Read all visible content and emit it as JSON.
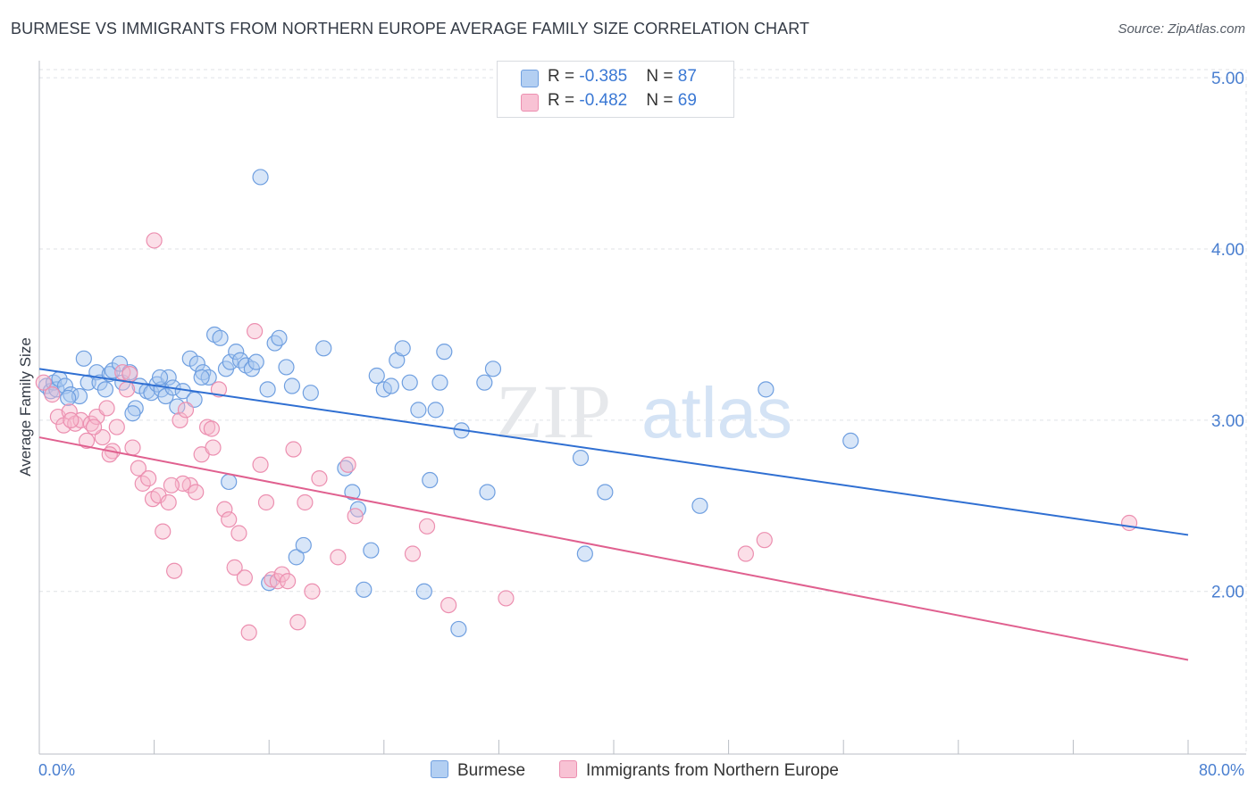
{
  "title": "BURMESE VS IMMIGRANTS FROM NORTHERN EUROPE AVERAGE FAMILY SIZE CORRELATION CHART",
  "source": "Source: ZipAtlas.com",
  "watermark": {
    "zip": "ZIP",
    "atlas": "atlas"
  },
  "legend": {
    "rows": [
      {
        "r_label": "R = ",
        "r_value": "-0.385",
        "n_label": "N = ",
        "n_value": "87"
      },
      {
        "r_label": "R = ",
        "r_value": "-0.482",
        "n_label": "N = ",
        "n_value": "69"
      }
    ]
  },
  "colors": {
    "burmese_fill": "#a9c8f0",
    "burmese_stroke": "#6f9fe0",
    "burmese_line": "#2f6fd2",
    "immigrants_fill": "#f6b8cc",
    "immigrants_stroke": "#ec8fb0",
    "immigrants_line": "#e0608f",
    "tick_label": "#4a7fd0",
    "grid": "#dfe2e6"
  },
  "chart_data": {
    "type": "scatter",
    "title": "BURMESE VS IMMIGRANTS FROM NORTHERN EUROPE AVERAGE FAMILY SIZE CORRELATION CHART",
    "xlabel": "",
    "ylabel": "Average Family Size",
    "xlim": [
      0,
      80
    ],
    "ylim": [
      1.05,
      5.1
    ],
    "x_tick_labels": [
      "0.0%",
      "80.0%"
    ],
    "y_ticks": [
      2.0,
      3.0,
      4.0,
      5.0
    ],
    "y_tick_labels": [
      "2.00",
      "3.00",
      "4.00",
      "5.00"
    ],
    "grid": true,
    "series": [
      {
        "name": "Burmese",
        "r": -0.385,
        "n": 87,
        "trend": {
          "x": [
            0,
            80
          ],
          "y": [
            3.3,
            2.33
          ]
        },
        "points": [
          [
            0.5,
            3.2
          ],
          [
            0.8,
            3.17
          ],
          [
            1.0,
            3.22
          ],
          [
            1.2,
            3.18
          ],
          [
            1.4,
            3.24
          ],
          [
            1.8,
            3.2
          ],
          [
            2.2,
            3.15
          ],
          [
            2.8,
            3.14
          ],
          [
            3.1,
            3.36
          ],
          [
            3.4,
            3.22
          ],
          [
            4.0,
            3.28
          ],
          [
            4.2,
            3.22
          ],
          [
            4.6,
            3.18
          ],
          [
            4.9,
            3.27
          ],
          [
            5.1,
            3.29
          ],
          [
            5.6,
            3.33
          ],
          [
            5.8,
            3.22
          ],
          [
            6.3,
            3.28
          ],
          [
            6.7,
            3.07
          ],
          [
            7.0,
            3.2
          ],
          [
            7.5,
            3.17
          ],
          [
            7.8,
            3.16
          ],
          [
            8.2,
            3.21
          ],
          [
            8.5,
            3.18
          ],
          [
            8.8,
            3.14
          ],
          [
            9.0,
            3.25
          ],
          [
            9.3,
            3.19
          ],
          [
            9.6,
            3.08
          ],
          [
            10.0,
            3.17
          ],
          [
            10.5,
            3.36
          ],
          [
            10.8,
            3.12
          ],
          [
            11.0,
            3.33
          ],
          [
            11.4,
            3.28
          ],
          [
            11.8,
            3.25
          ],
          [
            12.2,
            3.5
          ],
          [
            12.6,
            3.48
          ],
          [
            13.0,
            3.3
          ],
          [
            13.3,
            3.34
          ],
          [
            13.7,
            3.4
          ],
          [
            14.0,
            3.35
          ],
          [
            14.4,
            3.32
          ],
          [
            14.8,
            3.3
          ],
          [
            15.1,
            3.34
          ],
          [
            15.4,
            4.42
          ],
          [
            15.9,
            3.18
          ],
          [
            16.4,
            3.45
          ],
          [
            16.7,
            3.48
          ],
          [
            17.2,
            3.31
          ],
          [
            17.6,
            3.2
          ],
          [
            18.9,
            3.16
          ],
          [
            19.8,
            3.42
          ],
          [
            21.3,
            2.72
          ],
          [
            21.8,
            2.58
          ],
          [
            22.2,
            2.48
          ],
          [
            22.6,
            2.01
          ],
          [
            23.1,
            2.24
          ],
          [
            23.5,
            3.26
          ],
          [
            24.0,
            3.18
          ],
          [
            24.5,
            3.2
          ],
          [
            24.9,
            3.35
          ],
          [
            25.3,
            3.42
          ],
          [
            25.8,
            3.22
          ],
          [
            26.4,
            3.06
          ],
          [
            26.8,
            2.0
          ],
          [
            27.2,
            2.65
          ],
          [
            27.6,
            3.06
          ],
          [
            27.9,
            3.22
          ],
          [
            28.2,
            3.4
          ],
          [
            29.2,
            1.78
          ],
          [
            29.4,
            2.94
          ],
          [
            31.0,
            3.22
          ],
          [
            31.6,
            3.3
          ],
          [
            31.2,
            2.58
          ],
          [
            37.7,
            2.78
          ],
          [
            38.0,
            2.22
          ],
          [
            39.4,
            2.58
          ],
          [
            46.0,
            2.5
          ],
          [
            50.6,
            3.18
          ],
          [
            56.5,
            2.88
          ],
          [
            17.9,
            2.2
          ],
          [
            18.4,
            2.27
          ],
          [
            16.0,
            2.05
          ],
          [
            13.2,
            2.64
          ],
          [
            8.4,
            3.25
          ],
          [
            6.5,
            3.04
          ],
          [
            2.0,
            3.13
          ],
          [
            11.3,
            3.25
          ]
        ]
      },
      {
        "name": "Immigrants from Northern Europe",
        "r": -0.482,
        "n": 69,
        "trend": {
          "x": [
            0,
            80
          ],
          "y": [
            2.9,
            1.6
          ]
        },
        "points": [
          [
            0.3,
            3.22
          ],
          [
            0.9,
            3.15
          ],
          [
            1.3,
            3.02
          ],
          [
            1.7,
            2.97
          ],
          [
            2.1,
            3.05
          ],
          [
            2.5,
            2.98
          ],
          [
            2.9,
            3.0
          ],
          [
            3.3,
            2.88
          ],
          [
            3.6,
            2.98
          ],
          [
            4.0,
            3.02
          ],
          [
            4.4,
            2.9
          ],
          [
            4.7,
            3.07
          ],
          [
            5.1,
            2.82
          ],
          [
            5.4,
            2.96
          ],
          [
            5.8,
            3.28
          ],
          [
            6.1,
            3.18
          ],
          [
            6.5,
            2.84
          ],
          [
            6.9,
            2.72
          ],
          [
            7.2,
            2.63
          ],
          [
            7.6,
            2.66
          ],
          [
            7.9,
            2.54
          ],
          [
            8.3,
            2.56
          ],
          [
            8.6,
            2.35
          ],
          [
            9.0,
            2.52
          ],
          [
            9.4,
            2.12
          ],
          [
            9.8,
            3.0
          ],
          [
            10.2,
            3.06
          ],
          [
            10.5,
            2.62
          ],
          [
            10.9,
            2.58
          ],
          [
            11.3,
            2.8
          ],
          [
            11.7,
            2.96
          ],
          [
            12.1,
            2.84
          ],
          [
            12.5,
            3.18
          ],
          [
            12.9,
            2.48
          ],
          [
            13.2,
            2.42
          ],
          [
            13.6,
            2.14
          ],
          [
            13.9,
            2.34
          ],
          [
            14.3,
            2.08
          ],
          [
            14.6,
            1.76
          ],
          [
            15.0,
            3.52
          ],
          [
            15.4,
            2.74
          ],
          [
            15.8,
            2.52
          ],
          [
            16.2,
            2.07
          ],
          [
            16.6,
            2.06
          ],
          [
            16.9,
            2.1
          ],
          [
            17.3,
            2.06
          ],
          [
            17.7,
            2.83
          ],
          [
            18.0,
            1.82
          ],
          [
            18.5,
            2.52
          ],
          [
            19.0,
            2.0
          ],
          [
            19.5,
            2.66
          ],
          [
            20.8,
            2.2
          ],
          [
            21.5,
            2.74
          ],
          [
            22.0,
            2.44
          ],
          [
            26.0,
            2.22
          ],
          [
            27.0,
            2.38
          ],
          [
            28.5,
            1.92
          ],
          [
            32.5,
            1.96
          ],
          [
            49.2,
            2.22
          ],
          [
            50.5,
            2.3
          ],
          [
            75.9,
            2.4
          ],
          [
            8.0,
            4.05
          ],
          [
            6.3,
            3.27
          ],
          [
            10.0,
            2.63
          ],
          [
            4.9,
            2.8
          ],
          [
            3.8,
            2.96
          ],
          [
            2.2,
            3.0
          ],
          [
            12.0,
            2.95
          ],
          [
            9.2,
            2.62
          ]
        ]
      }
    ]
  },
  "bottom_legend": [
    "Burmese",
    "Immigrants from Northern Europe"
  ]
}
